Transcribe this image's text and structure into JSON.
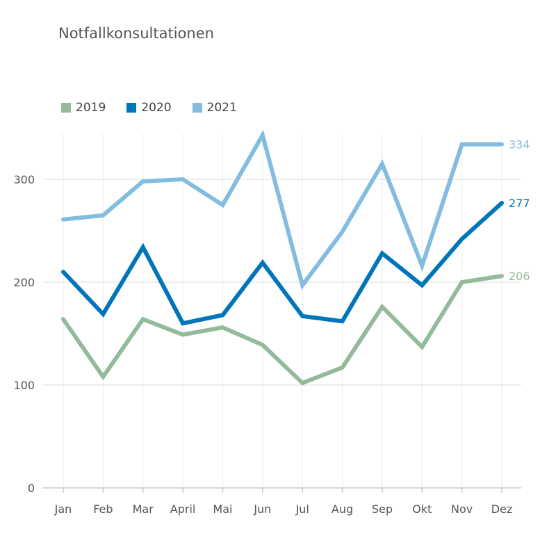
{
  "chart_data": {
    "type": "line",
    "title": "Notfallkonsultationen",
    "categories": [
      "Jan",
      "Feb",
      "Mar",
      "April",
      "Mai",
      "Jun",
      "Jul",
      "Aug",
      "Sep",
      "Okt",
      "Nov",
      "Dez"
    ],
    "series": [
      {
        "name": "2019",
        "color": "#93bb9a",
        "values": [
          164,
          108,
          164,
          149,
          156,
          139,
          102,
          117,
          176,
          137,
          200,
          206
        ],
        "end_label": "206"
      },
      {
        "name": "2020",
        "color": "#0075b9",
        "values": [
          210,
          169,
          234,
          160,
          168,
          219,
          167,
          162,
          228,
          197,
          242,
          277
        ],
        "end_label": "277"
      },
      {
        "name": "2021",
        "color": "#82bde0",
        "values": [
          261,
          265,
          298,
          300,
          275,
          343,
          197,
          249,
          315,
          216,
          334,
          334
        ],
        "end_label": "334"
      }
    ],
    "y_ticks": [
      "0",
      "100",
      "200",
      "300"
    ],
    "ylim": [
      0,
      345
    ],
    "grid": true,
    "legend_position": "top-left"
  }
}
